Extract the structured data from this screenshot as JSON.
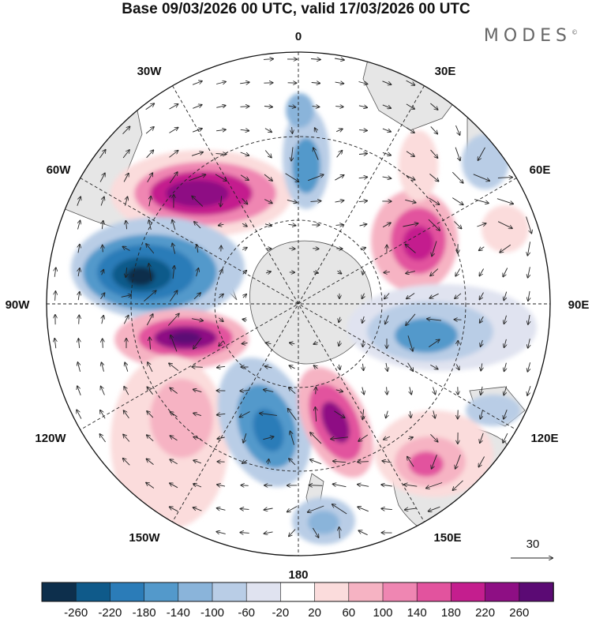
{
  "title": "Base 09/03/2026 00 UTC, valid 17/03/2026 00 UTC",
  "logo": "MODES",
  "logo_mark": "©",
  "meridian_labels": {
    "lon_0": "0",
    "lon_30e": "30E",
    "lon_60e": "60E",
    "lon_90e": "90E",
    "lon_120e": "120E",
    "lon_150e": "150E",
    "lon_180": "180",
    "lon_150w": "150W",
    "lon_120w": "120W",
    "lon_90w": "90W",
    "lon_60w": "60W",
    "lon_30w": "30W"
  },
  "vector_reference": "30",
  "colorbar": {
    "colors": [
      "#0d2f4c",
      "#0f5a8a",
      "#2b7cb8",
      "#5399cb",
      "#8ab4da",
      "#b9cde6",
      "#e0e3f0",
      "#ffffff",
      "#fbdcdc",
      "#f6b3c3",
      "#ef86b2",
      "#e2539e",
      "#c41e8e",
      "#8e0f84",
      "#5b0a74"
    ],
    "ticks": [
      "-260",
      "-220",
      "-180",
      "-140",
      "-100",
      "-60",
      "-20",
      "20",
      "60",
      "100",
      "140",
      "180",
      "220",
      "260"
    ]
  },
  "anomalies": [
    {
      "id": "pos-south-atlantic",
      "value": 230
    },
    {
      "id": "neg-weddell",
      "value": -120
    },
    {
      "id": "neg-bellingshausen",
      "value": -250
    },
    {
      "id": "pos-amundsen",
      "value": 240
    },
    {
      "id": "neg-south-pacific",
      "value": -180
    },
    {
      "id": "pos-ross",
      "value": 200
    },
    {
      "id": "pos-indian",
      "value": 190
    },
    {
      "id": "neg-indian-east",
      "value": -140
    },
    {
      "id": "pos-australia",
      "value": 120
    },
    {
      "id": "neg-tasman",
      "value": -110
    }
  ]
}
